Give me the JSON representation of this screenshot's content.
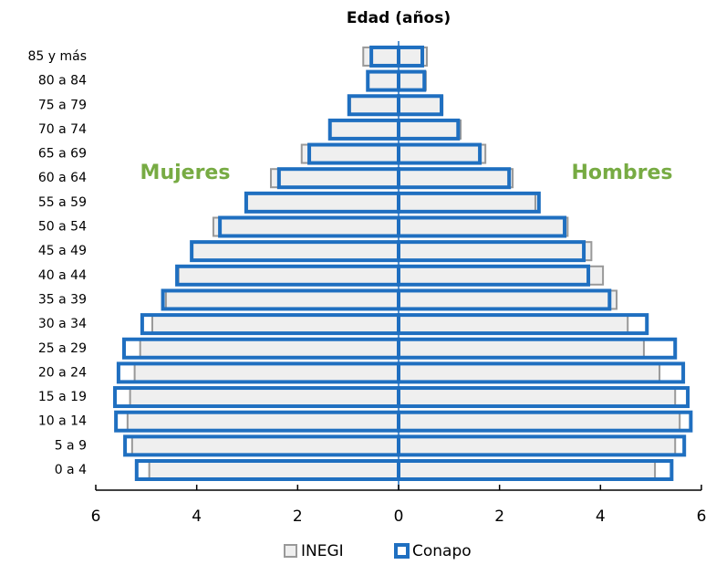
{
  "chart_data": {
    "type": "pyramid",
    "title": "Edad (años)",
    "categories": [
      "0 a 4",
      "5 a 9",
      "10 a 14",
      "15 a 19",
      "20 a 24",
      "25 a 29",
      "30 a 34",
      "35 a 39",
      "40 a 44",
      "45 a 49",
      "50 a 54",
      "55 a 59",
      "60 a 64",
      "65 a 69",
      "70 a 74",
      "75 a 79",
      "80 a 84",
      "85 y más"
    ],
    "side_labels": [
      "Mujeres",
      "Hombres"
    ],
    "series": [
      {
        "name": "INEGI",
        "color": "#999999",
        "fill": "#efefef",
        "mujeres": [
          -4.94,
          -5.28,
          -5.37,
          -5.32,
          -5.23,
          -5.12,
          -4.88,
          -4.61,
          -4.36,
          -4.09,
          -3.67,
          -3.0,
          -2.53,
          -1.92,
          -1.37,
          -0.96,
          -0.6,
          -0.7
        ],
        "hombres": [
          5.08,
          5.48,
          5.57,
          5.48,
          5.17,
          4.86,
          4.54,
          4.32,
          4.05,
          3.82,
          3.35,
          2.71,
          2.26,
          1.72,
          1.23,
          0.87,
          0.54,
          0.56
        ]
      },
      {
        "name": "Conapo",
        "color": "#1f6fc0",
        "mujeres": [
          -5.19,
          -5.42,
          -5.6,
          -5.62,
          -5.55,
          -5.44,
          -5.08,
          -4.67,
          -4.39,
          -4.1,
          -3.54,
          -3.02,
          -2.37,
          -1.77,
          -1.36,
          -0.98,
          -0.61,
          -0.54
        ],
        "hombres": [
          5.41,
          5.66,
          5.79,
          5.73,
          5.64,
          5.48,
          4.92,
          4.18,
          3.76,
          3.67,
          3.29,
          2.78,
          2.19,
          1.61,
          1.18,
          0.85,
          0.51,
          0.47
        ]
      }
    ],
    "xlim": [
      -6,
      6
    ],
    "xticks": [
      {
        "value": -6,
        "label": "6"
      },
      {
        "value": -4,
        "label": "4"
      },
      {
        "value": -2,
        "label": "2"
      },
      0,
      2,
      4,
      6
    ]
  }
}
